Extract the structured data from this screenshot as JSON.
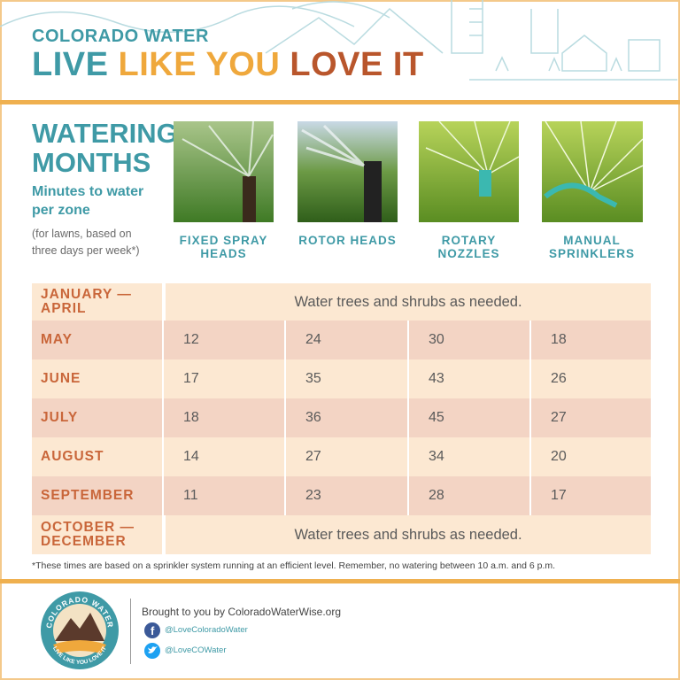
{
  "header": {
    "brand": "COLORADO WATER",
    "tagline": [
      "LIVE",
      "LIKE YOU",
      "LOVE IT"
    ]
  },
  "intro": {
    "title": "WATERING MONTHS",
    "subtitle": "Minutes to water per zone",
    "note": "(for lawns, based on three days per week*)"
  },
  "columns": [
    "FIXED SPRAY HEADS",
    "ROTOR HEADS",
    "ROTARY NOZZLES",
    "MANUAL SPRINKLERS"
  ],
  "table": {
    "rows": [
      {
        "month": "JANUARY — APRIL",
        "note": "Water trees and shrubs as needed."
      },
      {
        "month": "MAY",
        "values": [
          12,
          24,
          30,
          18
        ]
      },
      {
        "month": "JUNE",
        "values": [
          17,
          35,
          43,
          26
        ]
      },
      {
        "month": "JULY",
        "values": [
          18,
          36,
          45,
          27
        ]
      },
      {
        "month": "AUGUST",
        "values": [
          14,
          27,
          34,
          20
        ]
      },
      {
        "month": "SEPTEMBER",
        "values": [
          11,
          23,
          28,
          17
        ]
      },
      {
        "month": "OCTOBER — DECEMBER",
        "note": "Water trees and shrubs as needed."
      }
    ]
  },
  "footnote": "*These times are based on a sprinkler system running at an efficient level. Remember, no watering between 10 a.m. and 6 p.m.",
  "footer": {
    "badge_top": "COLORADO WATER",
    "badge_bottom": "LIVE LIKE YOU LOVE IT",
    "credit": "Brought to you by ColoradoWaterWise.org",
    "facebook": "@LoveColoradoWater",
    "twitter": "@LoveCOWater"
  }
}
